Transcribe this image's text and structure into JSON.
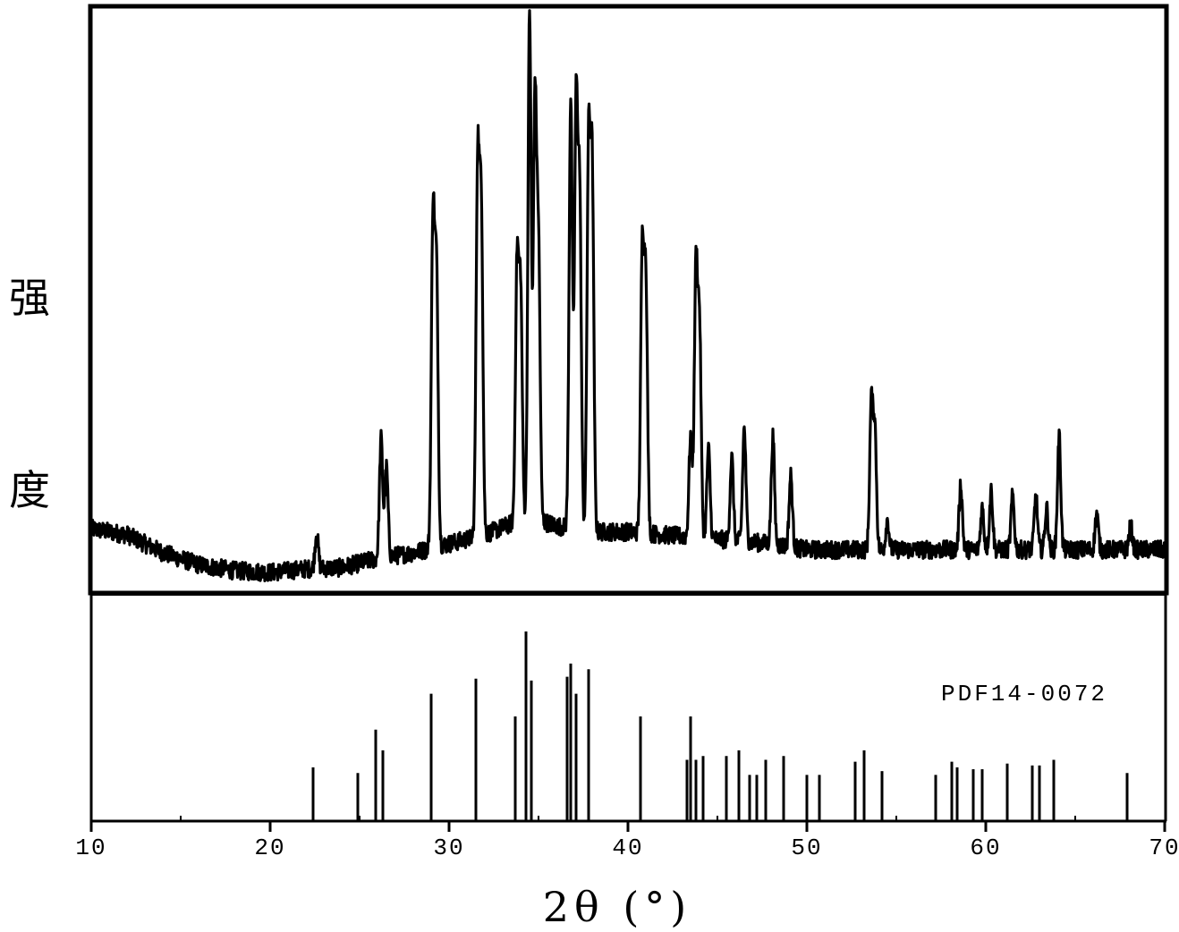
{
  "chart_data": {
    "type": "line",
    "subtype": "xrd-pattern-with-reference-sticks",
    "xlabel": "2θ (°)",
    "ylabel": [
      "强",
      "度"
    ],
    "xlim": [
      10,
      70
    ],
    "xticks": [
      10,
      20,
      30,
      40,
      50,
      60,
      70
    ],
    "xtick_labels": [
      "10",
      "20",
      "30",
      "40",
      "50",
      "60",
      "70"
    ],
    "grid": false,
    "measured": {
      "baseline": [
        [
          10,
          0.085
        ],
        [
          12,
          0.075
        ],
        [
          14,
          0.045
        ],
        [
          16,
          0.025
        ],
        [
          18,
          0.015
        ],
        [
          20,
          0.012
        ],
        [
          22,
          0.018
        ],
        [
          24,
          0.02
        ],
        [
          26,
          0.035
        ],
        [
          28,
          0.045
        ],
        [
          30,
          0.06
        ],
        [
          32,
          0.075
        ],
        [
          34,
          0.1
        ],
        [
          35,
          0.1
        ],
        [
          36,
          0.09
        ],
        [
          38,
          0.08
        ],
        [
          40,
          0.08
        ],
        [
          42,
          0.075
        ],
        [
          44,
          0.07
        ],
        [
          46,
          0.065
        ],
        [
          48,
          0.06
        ],
        [
          50,
          0.05
        ],
        [
          55,
          0.05
        ],
        [
          60,
          0.05
        ],
        [
          65,
          0.05
        ],
        [
          70,
          0.05
        ]
      ],
      "peaks": [
        {
          "pos": 22.6,
          "height": 0.06
        },
        {
          "pos": 26.2,
          "height": 0.2
        },
        {
          "pos": 26.5,
          "height": 0.15
        },
        {
          "pos": 29.1,
          "height": 0.55
        },
        {
          "pos": 29.3,
          "height": 0.45
        },
        {
          "pos": 31.6,
          "height": 0.62
        },
        {
          "pos": 31.8,
          "height": 0.55
        },
        {
          "pos": 33.8,
          "height": 0.43
        },
        {
          "pos": 34.0,
          "height": 0.38
        },
        {
          "pos": 34.5,
          "height": 0.85
        },
        {
          "pos": 34.8,
          "height": 0.7
        },
        {
          "pos": 35.0,
          "height": 0.45
        },
        {
          "pos": 36.8,
          "height": 0.72
        },
        {
          "pos": 37.1,
          "height": 0.7
        },
        {
          "pos": 37.3,
          "height": 0.55
        },
        {
          "pos": 37.8,
          "height": 0.64
        },
        {
          "pos": 38.0,
          "height": 0.6
        },
        {
          "pos": 40.8,
          "height": 0.47
        },
        {
          "pos": 41.0,
          "height": 0.42
        },
        {
          "pos": 43.5,
          "height": 0.17
        },
        {
          "pos": 43.8,
          "height": 0.45
        },
        {
          "pos": 44.0,
          "height": 0.35
        },
        {
          "pos": 44.5,
          "height": 0.15
        },
        {
          "pos": 45.8,
          "height": 0.14
        },
        {
          "pos": 46.5,
          "height": 0.19
        },
        {
          "pos": 48.1,
          "height": 0.18
        },
        {
          "pos": 49.1,
          "height": 0.12
        },
        {
          "pos": 53.6,
          "height": 0.24
        },
        {
          "pos": 53.8,
          "height": 0.2
        },
        {
          "pos": 54.5,
          "height": 0.05
        },
        {
          "pos": 58.6,
          "height": 0.11
        },
        {
          "pos": 59.8,
          "height": 0.07
        },
        {
          "pos": 60.3,
          "height": 0.1
        },
        {
          "pos": 61.5,
          "height": 0.09
        },
        {
          "pos": 62.8,
          "height": 0.09
        },
        {
          "pos": 63.4,
          "height": 0.07
        },
        {
          "pos": 64.1,
          "height": 0.19
        },
        {
          "pos": 66.2,
          "height": 0.06
        },
        {
          "pos": 68.1,
          "height": 0.04
        }
      ]
    },
    "reference": {
      "name": "PDF14-0072",
      "sticks": [
        {
          "pos": 22.4,
          "intensity": 0.28
        },
        {
          "pos": 24.9,
          "intensity": 0.25
        },
        {
          "pos": 25.9,
          "intensity": 0.48
        },
        {
          "pos": 26.3,
          "intensity": 0.37
        },
        {
          "pos": 29.0,
          "intensity": 0.67
        },
        {
          "pos": 31.5,
          "intensity": 0.75
        },
        {
          "pos": 33.7,
          "intensity": 0.55
        },
        {
          "pos": 34.3,
          "intensity": 1.0
        },
        {
          "pos": 34.6,
          "intensity": 0.74
        },
        {
          "pos": 36.6,
          "intensity": 0.76
        },
        {
          "pos": 36.8,
          "intensity": 0.83
        },
        {
          "pos": 37.1,
          "intensity": 0.67
        },
        {
          "pos": 37.8,
          "intensity": 0.8
        },
        {
          "pos": 40.7,
          "intensity": 0.55
        },
        {
          "pos": 43.3,
          "intensity": 0.32
        },
        {
          "pos": 43.5,
          "intensity": 0.55
        },
        {
          "pos": 43.8,
          "intensity": 0.32
        },
        {
          "pos": 44.2,
          "intensity": 0.34
        },
        {
          "pos": 45.5,
          "intensity": 0.34
        },
        {
          "pos": 46.2,
          "intensity": 0.37
        },
        {
          "pos": 46.8,
          "intensity": 0.24
        },
        {
          "pos": 47.2,
          "intensity": 0.24
        },
        {
          "pos": 47.7,
          "intensity": 0.32
        },
        {
          "pos": 48.7,
          "intensity": 0.34
        },
        {
          "pos": 50.0,
          "intensity": 0.24
        },
        {
          "pos": 50.7,
          "intensity": 0.24
        },
        {
          "pos": 52.7,
          "intensity": 0.31
        },
        {
          "pos": 53.2,
          "intensity": 0.37
        },
        {
          "pos": 54.2,
          "intensity": 0.26
        },
        {
          "pos": 57.2,
          "intensity": 0.24
        },
        {
          "pos": 58.1,
          "intensity": 0.31
        },
        {
          "pos": 58.4,
          "intensity": 0.28
        },
        {
          "pos": 59.3,
          "intensity": 0.27
        },
        {
          "pos": 59.8,
          "intensity": 0.27
        },
        {
          "pos": 61.2,
          "intensity": 0.3
        },
        {
          "pos": 62.6,
          "intensity": 0.29
        },
        {
          "pos": 63.0,
          "intensity": 0.29
        },
        {
          "pos": 63.8,
          "intensity": 0.32
        },
        {
          "pos": 67.9,
          "intensity": 0.25
        }
      ]
    }
  }
}
